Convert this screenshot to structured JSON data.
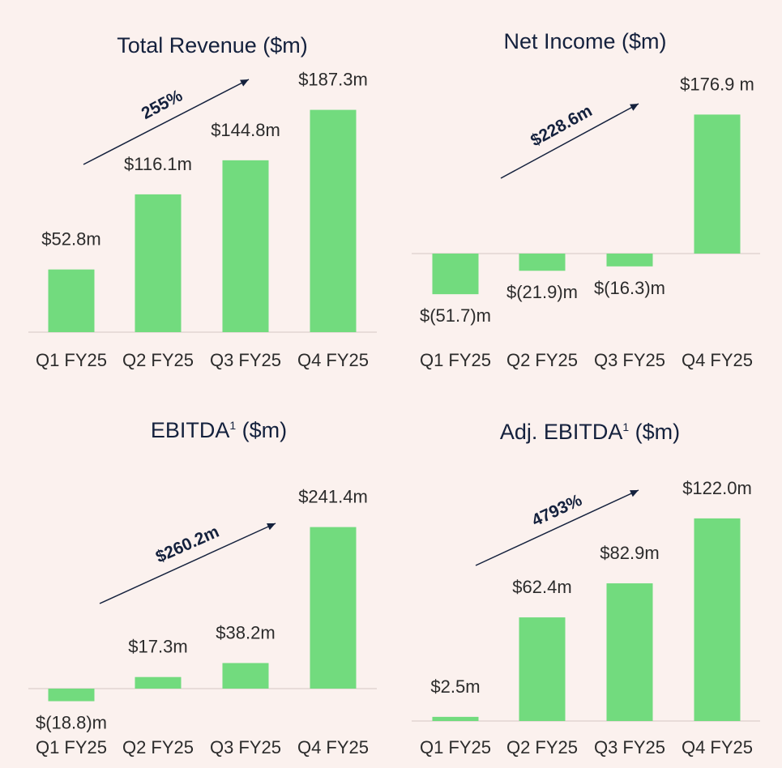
{
  "chart_data": [
    {
      "type": "bar",
      "title": "Total Revenue ($m)",
      "categories": [
        "Q1 FY25",
        "Q2 FY25",
        "Q3 FY25",
        "Q4 FY25"
      ],
      "values": [
        52.8,
        116.1,
        144.8,
        187.3
      ],
      "value_labels": [
        "$52.8m",
        "$116.1m",
        "$144.8m",
        "$187.3m"
      ],
      "annotation": "255%",
      "bar_color": "#72db7e"
    },
    {
      "type": "bar",
      "title": "Net Income ($m)",
      "categories": [
        "Q1 FY25",
        "Q2 FY25",
        "Q3 FY25",
        "Q4 FY25"
      ],
      "values": [
        -51.7,
        -21.9,
        -16.3,
        176.9
      ],
      "value_labels": [
        "$(51.7)m",
        "$(21.9)m",
        "$(16.3)m",
        "$176.9 m"
      ],
      "annotation": "$228.6m",
      "bar_color": "#72db7e"
    },
    {
      "type": "bar",
      "title": "EBITDA",
      "title_sup": "1",
      "title_suffix": " ($m)",
      "categories": [
        "Q1 FY25",
        "Q2 FY25",
        "Q3 FY25",
        "Q4 FY25"
      ],
      "values": [
        -18.8,
        17.3,
        38.2,
        241.4
      ],
      "value_labels": [
        "$(18.8)m",
        "$17.3m",
        "$38.2m",
        "$241.4m"
      ],
      "annotation": "$260.2m",
      "bar_color": "#72db7e"
    },
    {
      "type": "bar",
      "title": "Adj. EBITDA",
      "title_sup": "1",
      "title_suffix": " ($m)",
      "categories": [
        "Q1 FY25",
        "Q2 FY25",
        "Q3 FY25",
        "Q4 FY25"
      ],
      "values": [
        2.5,
        62.4,
        82.9,
        122.0
      ],
      "value_labels": [
        "$2.5m",
        "$62.4m",
        "$82.9m",
        "$122.0m"
      ],
      "annotation": "4793%",
      "bar_color": "#72db7e"
    }
  ],
  "colors": {
    "background": "#fbf1ee",
    "bar": "#72db7e",
    "title": "#14213d",
    "arrow": "#14213d",
    "baseline": "#e2d6d2"
  }
}
